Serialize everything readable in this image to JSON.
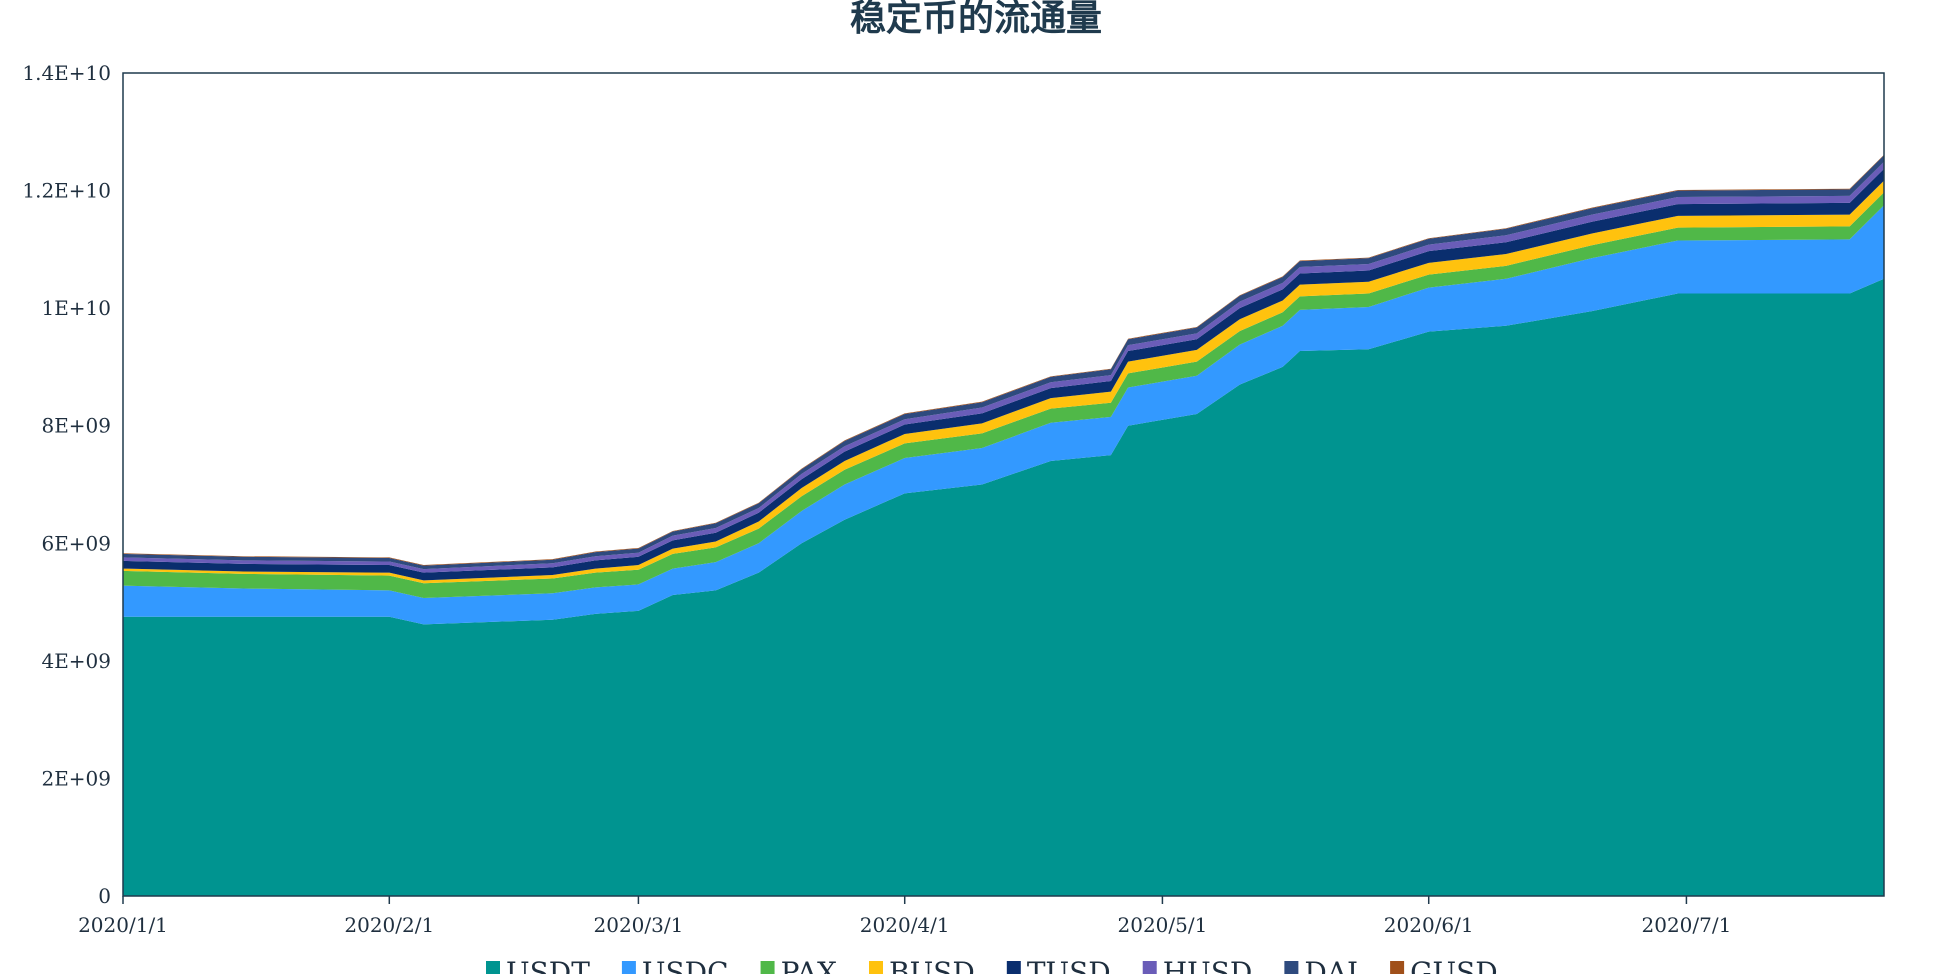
{
  "chart_data": {
    "type": "area",
    "stacked": true,
    "title": "稳定币的流通量",
    "xlabel": "",
    "ylabel": "",
    "value_unit_multiplier": 1000000000,
    "ylim": [
      0,
      14
    ],
    "y_ticks": [
      0,
      2,
      4,
      6,
      8,
      10,
      12,
      14
    ],
    "y_tick_labels": [
      "0",
      "2E+09",
      "4E+09",
      "6E+09",
      "8E+09",
      "1E+10",
      "1.2E+10",
      "1.4E+10"
    ],
    "x_range": [
      "2020/1/1",
      "2020/7/24"
    ],
    "x_tick_labels": [
      "2020/1/1",
      "2020/2/1",
      "2020/3/1",
      "2020/4/1",
      "2020/5/1",
      "2020/6/1",
      "2020/7/1"
    ],
    "grid": false,
    "legend_position": "bottom",
    "x": [
      "2020/1/1",
      "2020/1/15",
      "2020/2/1",
      "2020/2/5",
      "2020/2/20",
      "2020/2/25",
      "2020/3/1",
      "2020/3/5",
      "2020/3/10",
      "2020/3/15",
      "2020/3/20",
      "2020/3/25",
      "2020/4/1",
      "2020/4/10",
      "2020/4/18",
      "2020/4/25",
      "2020/4/27",
      "2020/5/5",
      "2020/5/10",
      "2020/5/15",
      "2020/5/17",
      "2020/5/25",
      "2020/6/1",
      "2020/6/10",
      "2020/6/20",
      "2020/6/30",
      "2020/7/20",
      "2020/7/24"
    ],
    "series": [
      {
        "name": "USDT",
        "color": "#009490",
        "values": [
          4.75,
          4.75,
          4.75,
          4.62,
          4.7,
          4.8,
          4.85,
          5.12,
          5.2,
          5.5,
          6.0,
          6.4,
          6.85,
          7.0,
          7.4,
          7.5,
          8.0,
          8.2,
          8.7,
          9.0,
          9.27,
          9.3,
          9.6,
          9.7,
          9.95,
          10.25,
          10.25,
          10.5
        ]
      },
      {
        "name": "USDC",
        "color": "#3399ff",
        "values": [
          0.53,
          0.48,
          0.45,
          0.45,
          0.45,
          0.45,
          0.45,
          0.45,
          0.48,
          0.5,
          0.55,
          0.6,
          0.6,
          0.62,
          0.65,
          0.65,
          0.65,
          0.65,
          0.68,
          0.7,
          0.7,
          0.72,
          0.75,
          0.8,
          0.9,
          0.9,
          0.92,
          1.25
        ]
      },
      {
        "name": "PAX",
        "color": "#50b848",
        "values": [
          0.25,
          0.25,
          0.25,
          0.25,
          0.25,
          0.25,
          0.25,
          0.25,
          0.25,
          0.25,
          0.25,
          0.25,
          0.25,
          0.25,
          0.24,
          0.24,
          0.24,
          0.24,
          0.23,
          0.23,
          0.23,
          0.23,
          0.22,
          0.22,
          0.22,
          0.22,
          0.22,
          0.22
        ]
      },
      {
        "name": "BUSD",
        "color": "#ffc20e",
        "values": [
          0.04,
          0.04,
          0.05,
          0.05,
          0.06,
          0.07,
          0.08,
          0.09,
          0.1,
          0.12,
          0.14,
          0.15,
          0.16,
          0.17,
          0.18,
          0.19,
          0.2,
          0.2,
          0.2,
          0.2,
          0.2,
          0.2,
          0.2,
          0.2,
          0.2,
          0.2,
          0.2,
          0.2
        ]
      },
      {
        "name": "TUSD",
        "color": "#0a2e6e",
        "values": [
          0.13,
          0.13,
          0.13,
          0.13,
          0.13,
          0.14,
          0.14,
          0.14,
          0.15,
          0.15,
          0.15,
          0.16,
          0.16,
          0.17,
          0.17,
          0.18,
          0.18,
          0.18,
          0.19,
          0.19,
          0.19,
          0.19,
          0.2,
          0.2,
          0.2,
          0.2,
          0.2,
          0.2
        ]
      },
      {
        "name": "HUSD",
        "color": "#6a5db8",
        "values": [
          0.06,
          0.06,
          0.06,
          0.06,
          0.07,
          0.07,
          0.07,
          0.08,
          0.08,
          0.08,
          0.09,
          0.09,
          0.09,
          0.1,
          0.1,
          0.1,
          0.1,
          0.1,
          0.11,
          0.11,
          0.11,
          0.11,
          0.11,
          0.12,
          0.12,
          0.12,
          0.12,
          0.12
        ]
      },
      {
        "name": "DAI",
        "color": "#2e4a7e",
        "values": [
          0.06,
          0.06,
          0.06,
          0.06,
          0.06,
          0.07,
          0.07,
          0.07,
          0.08,
          0.08,
          0.08,
          0.09,
          0.09,
          0.09,
          0.09,
          0.1,
          0.1,
          0.1,
          0.1,
          0.1,
          0.1,
          0.1,
          0.1,
          0.11,
          0.11,
          0.11,
          0.11,
          0.11
        ]
      },
      {
        "name": "GUSD",
        "color": "#a0501a",
        "values": [
          0.01,
          0.01,
          0.01,
          0.01,
          0.01,
          0.01,
          0.01,
          0.01,
          0.01,
          0.01,
          0.01,
          0.01,
          0.01,
          0.01,
          0.01,
          0.01,
          0.01,
          0.01,
          0.01,
          0.01,
          0.01,
          0.01,
          0.01,
          0.01,
          0.01,
          0.01,
          0.01,
          0.01
        ]
      }
    ]
  }
}
